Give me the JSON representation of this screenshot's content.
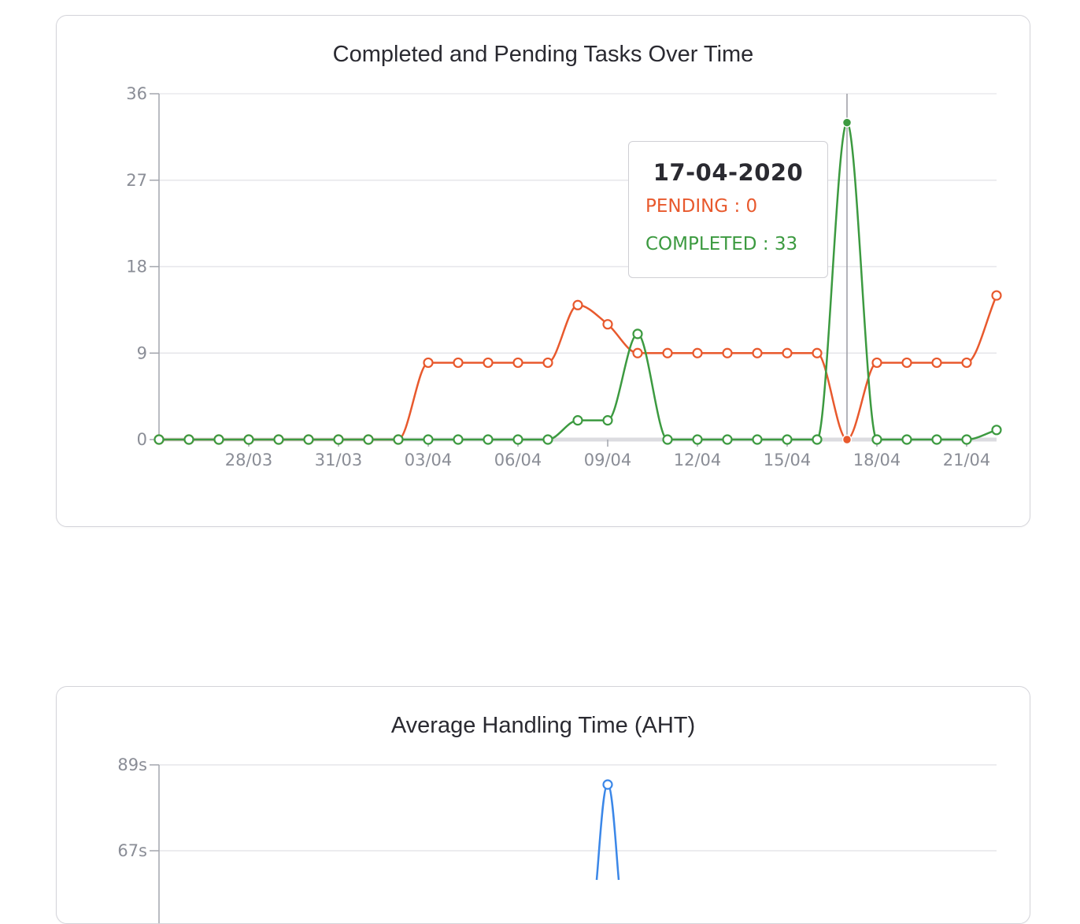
{
  "charts": {
    "tasks": {
      "title": "Completed and Pending Tasks Over Time",
      "tooltip": {
        "date": "17-04-2020",
        "pending_label": "PENDING : 0",
        "completed_label": "COMPLETED : 33"
      }
    },
    "aht": {
      "title": "Average Handling Time (AHT)"
    }
  },
  "colors": {
    "pending": "#e8592d",
    "completed": "#3c9a40",
    "aht": "#3b87e8"
  },
  "chart_data": [
    {
      "type": "line",
      "title": "Completed and Pending Tasks Over Time",
      "x": [
        "25/03",
        "26/03",
        "27/03",
        "28/03",
        "29/03",
        "30/03",
        "31/03",
        "01/04",
        "02/04",
        "03/04",
        "04/04",
        "05/04",
        "06/04",
        "07/04",
        "08/04",
        "09/04",
        "10/04",
        "11/04",
        "12/04",
        "13/04",
        "14/04",
        "15/04",
        "16/04",
        "17/04",
        "18/04",
        "19/04",
        "20/04",
        "21/04",
        "22/04"
      ],
      "x_tick_labels": [
        "28/03",
        "31/03",
        "03/04",
        "06/04",
        "09/04",
        "12/04",
        "15/04",
        "18/04",
        "21/04"
      ],
      "y_tick_labels": [
        "0",
        "9",
        "18",
        "27",
        "36"
      ],
      "ylim": [
        0,
        36
      ],
      "grid": true,
      "series": [
        {
          "name": "PENDING",
          "color": "#e8592d",
          "values": [
            0,
            0,
            0,
            0,
            0,
            0,
            0,
            0,
            0,
            8,
            8,
            8,
            8,
            8,
            14,
            12,
            9,
            9,
            9,
            9,
            9,
            9,
            9,
            0,
            8,
            8,
            8,
            8,
            15
          ]
        },
        {
          "name": "COMPLETED",
          "color": "#3c9a40",
          "values": [
            0,
            0,
            0,
            0,
            0,
            0,
            0,
            0,
            0,
            0,
            0,
            0,
            0,
            0,
            2,
            2,
            11,
            0,
            0,
            0,
            0,
            0,
            0,
            33,
            0,
            0,
            0,
            0,
            1
          ]
        }
      ],
      "highlight_x": "17/04"
    },
    {
      "type": "line",
      "title": "Average Handling Time (AHT)",
      "y_tick_labels": [
        "67s",
        "89s"
      ],
      "grid": true,
      "series": [
        {
          "color": "#3b87e8",
          "peak_value": 87,
          "peak_x": "09/04"
        }
      ]
    }
  ]
}
